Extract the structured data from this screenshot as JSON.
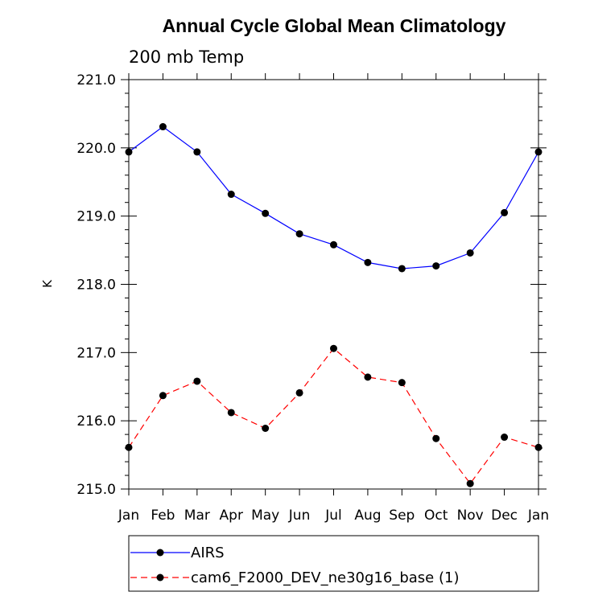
{
  "chart_data": {
    "type": "line",
    "title": "Annual Cycle Global Mean Climatology",
    "subtitle": "200 mb Temp",
    "xlabel": "",
    "ylabel": "K",
    "categories": [
      "Jan",
      "Feb",
      "Mar",
      "Apr",
      "May",
      "Jun",
      "Jul",
      "Aug",
      "Sep",
      "Oct",
      "Nov",
      "Dec",
      "Jan"
    ],
    "y_tick_labels": [
      "215.0",
      "216.0",
      "217.0",
      "218.0",
      "219.0",
      "220.0",
      "221.0"
    ],
    "ylim": [
      215.0,
      221.0
    ],
    "grid": false,
    "legend_position": "bottom",
    "series": [
      {
        "name": "AIRS",
        "color": "#0000ff",
        "line_style": "solid",
        "marker": "filled-circle",
        "values": [
          219.94,
          220.31,
          219.94,
          219.32,
          219.04,
          218.74,
          218.58,
          218.32,
          218.23,
          218.27,
          218.46,
          219.05,
          219.94
        ]
      },
      {
        "name": "cam6_F2000_DEV_ne30g16_base (1)",
        "color": "#ff0000",
        "line_style": "dashed",
        "marker": "filled-circle",
        "values": [
          215.61,
          216.37,
          216.58,
          216.12,
          215.89,
          216.41,
          217.06,
          216.64,
          216.56,
          215.74,
          215.08,
          215.76,
          215.61
        ]
      }
    ]
  }
}
